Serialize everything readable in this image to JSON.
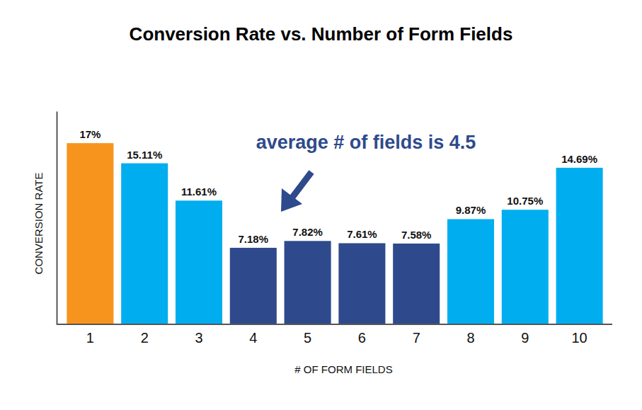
{
  "chart_data": {
    "type": "bar",
    "title": "Conversion Rate vs. Number of Form Fields",
    "x_label": "# OF FORM FIELDS",
    "y_label": "CONVERSION RATE",
    "annotation": "average # of fields is 4.5",
    "categories": [
      "1",
      "2",
      "3",
      "4",
      "5",
      "6",
      "7",
      "8",
      "9",
      "10"
    ],
    "values": [
      17,
      15.11,
      11.61,
      7.18,
      7.82,
      7.61,
      7.58,
      9.87,
      10.75,
      14.69
    ],
    "value_labels": [
      "17%",
      "15.11%",
      "11.61%",
      "7.18%",
      "7.82%",
      "7.61%",
      "7.58%",
      "9.87%",
      "10.75%",
      "14.69%"
    ],
    "colors": [
      "#f7941d",
      "#00aeef",
      "#00aeef",
      "#2e4a8c",
      "#2e4a8c",
      "#2e4a8c",
      "#2e4a8c",
      "#00aeef",
      "#00aeef",
      "#00aeef"
    ],
    "ylim": [
      0,
      20
    ],
    "grid": false,
    "data_labels": true,
    "tick_labels": "x"
  }
}
